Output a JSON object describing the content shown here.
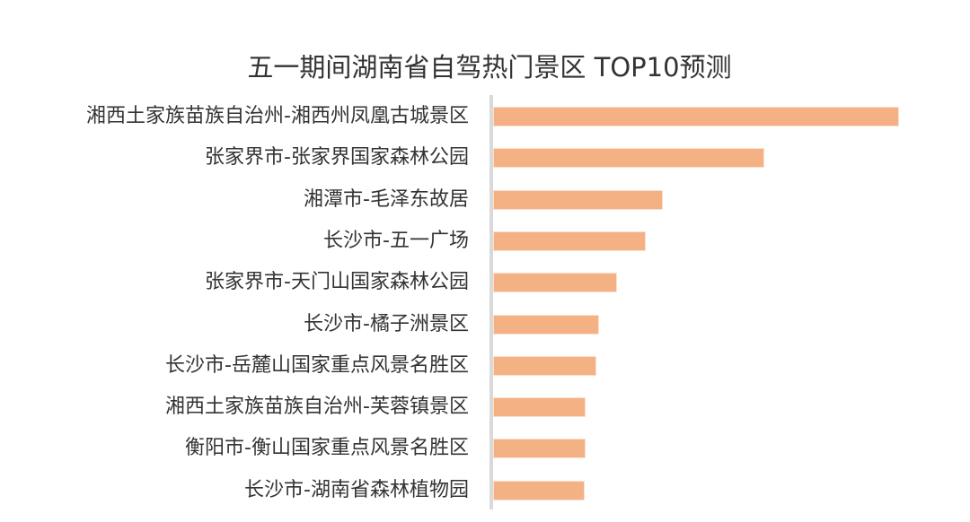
{
  "chart_data": {
    "type": "bar",
    "orientation": "horizontal",
    "title": "五一期间湖南省自驾热门景区 TOP10预测",
    "xlabel": "",
    "ylabel": "",
    "grid": false,
    "legend": null,
    "value_axis_visible": false,
    "bar_color": "#f4b183",
    "axis_color": "#d9d9d9",
    "categories": [
      "湘西土家族苗族自治州-湘西州凤凰古城景区",
      "张家界市-张家界国家森林公园",
      "湘潭市-毛泽东故居",
      "长沙市-五一广场",
      "张家界市-天门山国家森林公园",
      "长沙市-橘子洲景区",
      "长沙市-岳麓山国家重点风景名胜区",
      "湘西土家族苗族自治州-芙蓉镇景区",
      "衡阳市-衡山国家重点风景名胜区",
      "长沙市-湖南省森林植物园"
    ],
    "values": [
      100,
      66.8,
      41.8,
      37.6,
      30.5,
      26.1,
      25.4,
      22.8,
      22.8,
      22.6
    ],
    "value_note": "relative index (longest bar = 100), no numeric axis shown"
  }
}
